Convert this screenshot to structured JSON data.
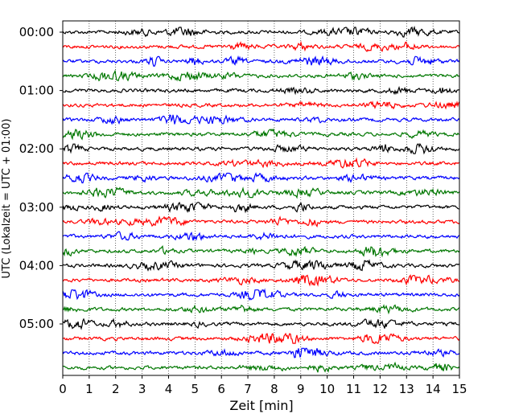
{
  "chart_data": {
    "type": "line",
    "chart_kind": "helicorder seismogram",
    "xlabel": "Zeit  [min]",
    "ylabel": "UTC (Lokalzeit = UTC + 01:00)",
    "xlim": [
      0,
      15
    ],
    "x_ticks": [
      0,
      1,
      2,
      3,
      4,
      5,
      6,
      7,
      8,
      9,
      10,
      11,
      12,
      13,
      14,
      15
    ],
    "x_tick_labels": [
      "0",
      "1",
      "2",
      "3",
      "4",
      "5",
      "6",
      "7",
      "8",
      "9",
      "10",
      "11",
      "12",
      "13",
      "14",
      "15"
    ],
    "y_tick_labels": [
      "00:00",
      "01:00",
      "02:00",
      "03:00",
      "04:00",
      "05:00"
    ],
    "rows_per_hour": 4,
    "row_count": 24,
    "row_colors": [
      "#000000",
      "#ff0000",
      "#0000ff",
      "#007700"
    ],
    "grid": "vertical dotted lines at each minute"
  }
}
